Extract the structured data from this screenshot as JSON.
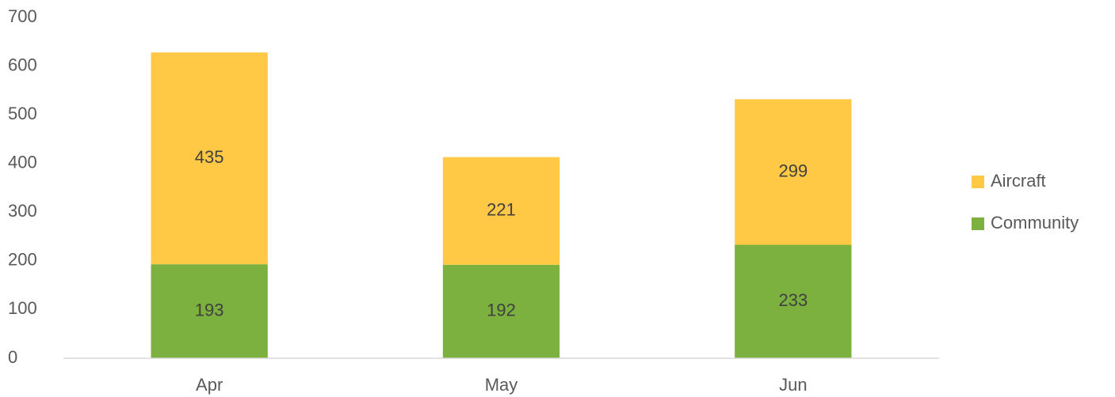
{
  "chart_data": {
    "type": "stacked_bar",
    "categories": [
      "Apr",
      "May",
      "Jun"
    ],
    "series": [
      {
        "name": "Community",
        "color": "#7cb03f",
        "values": [
          193,
          192,
          233
        ]
      },
      {
        "name": "Aircraft",
        "color": "#ffc845",
        "values": [
          435,
          221,
          299
        ]
      }
    ],
    "ylim": [
      0,
      700
    ],
    "yticks": [
      0,
      100,
      200,
      300,
      400,
      500,
      600,
      700
    ],
    "grid": false,
    "legend": "right",
    "data_labels": true
  }
}
